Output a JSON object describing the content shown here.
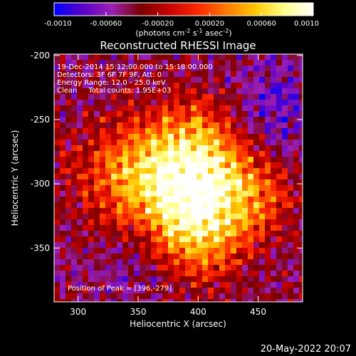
{
  "colorbar": {
    "tick_labels": [
      "-0.0010",
      "-0.00060",
      "-0.00020",
      "0.00020",
      "0.00060",
      "0.0010"
    ],
    "tick_values": [
      -0.001,
      -0.0006,
      -0.0002,
      0.0002,
      0.0006,
      0.001
    ],
    "range": [
      -0.001,
      0.001
    ],
    "unit_parts": {
      "a": "(photons cm",
      "a_sup": "-2",
      "b": " s",
      "b_sup": "-1",
      "c": " asec",
      "c_sup": "-2",
      "d": ")"
    },
    "colors": [
      "#0000ff",
      "#5a00c8",
      "#9b1fb4",
      "#7a0000",
      "#c80000",
      "#ff2800",
      "#ff7a00",
      "#ffc800",
      "#ffff8c",
      "#ffffff"
    ]
  },
  "chart_data": {
    "type": "heatmap",
    "title": "Reconstructed RHESSI Image",
    "xlabel": "Heliocentric X (arcsec)",
    "ylabel": "Heliocentric Y (arcsec)",
    "xlim": [
      280,
      487
    ],
    "ylim": [
      -392,
      -199
    ],
    "x_ticks": [
      300,
      350,
      400,
      450
    ],
    "y_ticks": [
      -200,
      -250,
      -300,
      -350
    ],
    "peak_position": [
      396,
      -279
    ],
    "annotations": [
      "19-Dec-2014 15:12:00.000 to 15:18:00.000",
      "Detectors: 3F 6F 7F 9F, Att: 0",
      "Energy Range: 12.0 - 25.0 keV",
      "Clean     Total counts: 1.95E+03",
      "Position of Peak = [396,-279]"
    ]
  },
  "footer": {
    "date": "20-May-2022 20:07"
  }
}
